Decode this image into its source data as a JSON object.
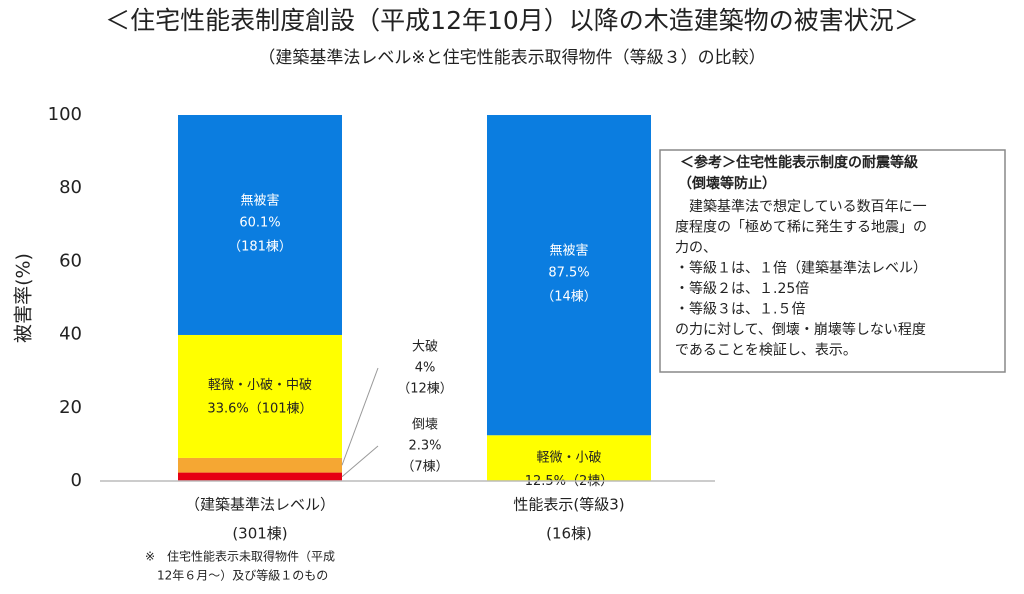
{
  "chart_data": {
    "type": "stacked-bar",
    "title": "＜住宅性能表制度創設（平成12年10月）以降の木造建築物の被害状況＞",
    "subtitle": "（建築基準法レベル※と住宅性能表示取得物件（等級３）の比較）",
    "y_label": "被害率(%)",
    "categories": [
      "（建築基準法レベル）",
      "性能表示(等級3)"
    ],
    "category_notes": [
      "(301棟)",
      "(16棟)"
    ],
    "series": [
      {
        "color": "#e60012",
        "values": [
          2.3,
          null
        ],
        "names": [
          "倒壊",
          null
        ],
        "value_labels": [
          "2.3%",
          null
        ],
        "counts": [
          "（7棟）",
          null
        ]
      },
      {
        "color": "#f5a733",
        "values": [
          4,
          null
        ],
        "names": [
          "大破",
          null
        ],
        "value_labels": [
          "4%",
          null
        ],
        "counts": [
          "（12棟）",
          null
        ]
      },
      {
        "color": "#ffff00",
        "values": [
          33.6,
          12.5
        ],
        "names": [
          "軽微・小破・中破",
          "軽微・小破"
        ],
        "value_labels": [
          "33.6%",
          "12.5%"
        ],
        "counts": [
          "（101棟）",
          "（2棟）"
        ]
      },
      {
        "color": "#0b7de0",
        "values": [
          60.1,
          87.5
        ],
        "names": [
          "無被害",
          "無被害"
        ],
        "value_labels": [
          "60.1%",
          "87.5%"
        ],
        "counts": [
          "（181棟）",
          "（14棟）"
        ]
      }
    ],
    "ylim": [
      0,
      100
    ],
    "yticks": [
      0,
      20,
      40,
      60,
      80,
      100
    ],
    "grid": false,
    "footnote": [
      "※　住宅性能表示未取得物件（平成",
      "12年６月～）及び等級１のもの"
    ],
    "note_box": {
      "title": [
        "＜参考＞住宅性能表示制度の耐震等級",
        "（倒壊等防止）"
      ],
      "lines": [
        "　建築基準法で想定している数百年に一",
        "度程度の「極めて稀に発生する地震」の",
        "力の、",
        "・等級１は、１倍（建築基準法レベル）",
        "・等級２は、１.25倍",
        "・等級３は、１.５倍",
        "の力に対して、倒壊・崩壊等しない程度",
        "であることを検証し、表示。"
      ]
    }
  }
}
